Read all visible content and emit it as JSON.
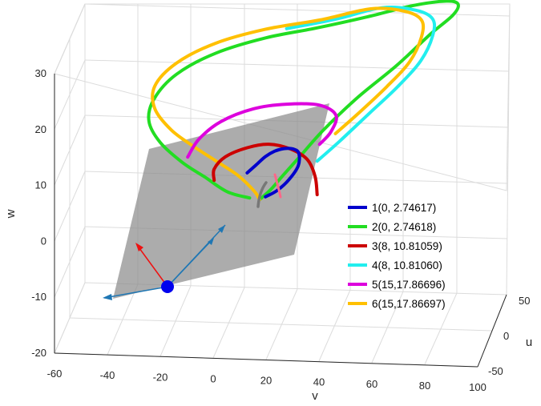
{
  "chart_data": {
    "type": "line",
    "projection": "3d",
    "title": "",
    "xlabel": "v",
    "ylabel": "u",
    "zlabel": "w",
    "xlim": [
      -60,
      100
    ],
    "ylim": [
      -50,
      50
    ],
    "zlim": [
      -20,
      30
    ],
    "x_ticks": [
      "-60",
      "-40",
      "-20",
      "0",
      "20",
      "40",
      "60",
      "80",
      "100"
    ],
    "y_ticks": [
      "-50",
      "0",
      "50"
    ],
    "z_ticks": [
      "-20",
      "-10",
      "0",
      "10",
      "20",
      "30"
    ],
    "grid": true,
    "legend_position": "right",
    "series": [
      {
        "name": "1(0, 2.74617)",
        "color": "#0000cc",
        "points": [
          [
            8,
            -8,
            8
          ],
          [
            11,
            -4,
            9
          ],
          [
            14,
            0,
            10
          ],
          [
            17,
            4,
            10.5
          ],
          [
            20,
            8,
            10.5
          ],
          [
            23,
            12,
            10
          ],
          [
            25,
            14,
            9
          ],
          [
            25,
            12,
            7
          ],
          [
            22,
            8,
            5
          ],
          [
            18,
            4,
            3.5
          ],
          [
            14,
            0,
            2.8
          ]
        ]
      },
      {
        "name": "2(0, 2.74618)",
        "color": "#22dd22",
        "points": [
          [
            12,
            -2,
            2.5
          ],
          [
            16,
            2,
            4
          ],
          [
            20,
            6,
            6
          ],
          [
            26,
            10,
            9
          ],
          [
            34,
            16,
            13
          ],
          [
            46,
            24,
            18
          ],
          [
            60,
            32,
            23
          ],
          [
            72,
            38,
            28
          ],
          [
            80,
            42,
            31
          ],
          [
            82,
            42,
            33
          ],
          [
            78,
            38,
            34
          ],
          [
            66,
            30,
            34
          ],
          [
            50,
            20,
            33
          ],
          [
            32,
            10,
            32
          ],
          [
            14,
            2,
            31
          ],
          [
            -4,
            -6,
            29
          ],
          [
            -18,
            -14,
            26
          ],
          [
            -26,
            -18,
            22
          ],
          [
            -28,
            -18,
            18
          ],
          [
            -24,
            -16,
            14
          ],
          [
            -16,
            -12,
            10
          ],
          [
            -8,
            -8,
            7
          ],
          [
            0,
            -4,
            4
          ],
          [
            8,
            0,
            2.5
          ]
        ]
      },
      {
        "name": "3(8, 10.81059)",
        "color": "#cc0000",
        "points": [
          [
            34,
            -4,
            4
          ],
          [
            33,
            -2,
            7
          ],
          [
            30,
            -2,
            10
          ],
          [
            24,
            -4,
            12
          ],
          [
            16,
            -6,
            13
          ],
          [
            8,
            -8,
            12.5
          ],
          [
            0,
            -10,
            11
          ],
          [
            -4,
            -12,
            9
          ],
          [
            -4,
            -12,
            7
          ]
        ]
      },
      {
        "name": "4(8, 10.81060)",
        "color": "#22eeee",
        "points": [
          [
            34,
            -4,
            10
          ],
          [
            42,
            2,
            13
          ],
          [
            52,
            10,
            17
          ],
          [
            62,
            18,
            21
          ],
          [
            70,
            24,
            25
          ],
          [
            74,
            28,
            29
          ],
          [
            74,
            28,
            32
          ],
          [
            68,
            24,
            34
          ],
          [
            56,
            18,
            35
          ],
          [
            40,
            8,
            34
          ],
          [
            22,
            0,
            33
          ]
        ]
      },
      {
        "name": "5(15,17.86696)",
        "color": "#dd00dd",
        "points": [
          [
            -14,
            -12,
            11
          ],
          [
            -10,
            -10,
            14
          ],
          [
            -2,
            -8,
            17
          ],
          [
            10,
            -4,
            19
          ],
          [
            22,
            0,
            19.5
          ],
          [
            34,
            4,
            19
          ],
          [
            40,
            6,
            17
          ],
          [
            38,
            6,
            14
          ],
          [
            34,
            4,
            12
          ]
        ]
      },
      {
        "name": "6(15,17.86697)",
        "color": "#ffc000",
        "points": [
          [
            40,
            4,
            14
          ],
          [
            48,
            10,
            17
          ],
          [
            58,
            18,
            21
          ],
          [
            66,
            22,
            25
          ],
          [
            70,
            26,
            29
          ],
          [
            70,
            26,
            32
          ],
          [
            64,
            22,
            34
          ],
          [
            52,
            16,
            35
          ],
          [
            34,
            6,
            34
          ],
          [
            14,
            -2,
            33
          ],
          [
            -4,
            -8,
            31
          ],
          [
            -18,
            -14,
            28
          ],
          [
            -26,
            -16,
            24
          ],
          [
            -26,
            -16,
            20
          ],
          [
            -20,
            -14,
            16
          ],
          [
            -12,
            -12,
            13
          ],
          [
            -4,
            -8,
            10
          ],
          [
            4,
            -4,
            7
          ],
          [
            10,
            -2,
            4
          ],
          [
            12,
            -2,
            2.5
          ]
        ]
      }
    ]
  }
}
